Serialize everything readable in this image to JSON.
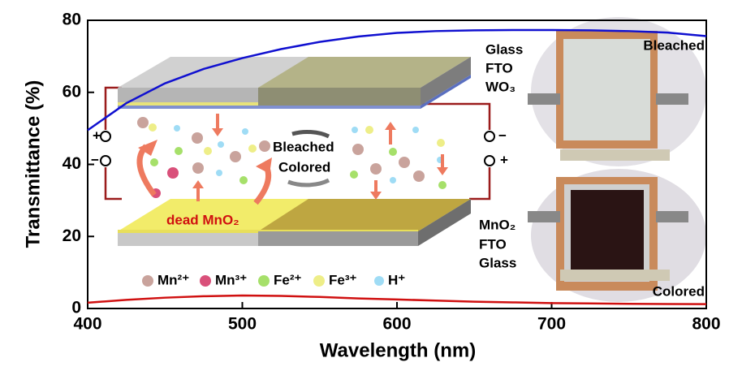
{
  "chart_data": {
    "type": "line",
    "xlabel": "Wavelength (nm)",
    "ylabel": "Transmittance (%)",
    "x": [
      400,
      425,
      450,
      475,
      500,
      525,
      550,
      575,
      600,
      625,
      650,
      675,
      700,
      725,
      750,
      775,
      800
    ],
    "series": [
      {
        "name": "Bleached",
        "color": "#1010d0",
        "values": [
          49.5,
          57,
          62.5,
          66.5,
          69.5,
          72,
          74,
          75.5,
          76.5,
          77,
          77.2,
          77.3,
          77.3,
          77.2,
          77,
          76.6,
          75.6
        ]
      },
      {
        "name": "Colored",
        "color": "#d01010",
        "values": [
          1.6,
          2.4,
          3,
          3.4,
          3.6,
          3.5,
          3.2,
          2.8,
          2.5,
          2.2,
          1.9,
          1.7,
          1.5,
          1.4,
          1.3,
          1.25,
          1.2
        ]
      }
    ],
    "xlim": [
      400,
      800
    ],
    "xticks": [
      400,
      500,
      600,
      700,
      800
    ],
    "ylim": [
      0,
      80
    ],
    "yticks": [
      0,
      20,
      40,
      60,
      80
    ],
    "annotations": [
      "Glass",
      "FTO",
      "WO₃",
      "MnO₂",
      "FTO",
      "Glass",
      "Bleached",
      "Colored",
      "dead MnO₂",
      "Mn²⁺",
      "Mn³⁺",
      "Fe²⁺",
      "Fe³⁺",
      "H⁺",
      "+",
      "−",
      "−",
      "+"
    ]
  }
}
